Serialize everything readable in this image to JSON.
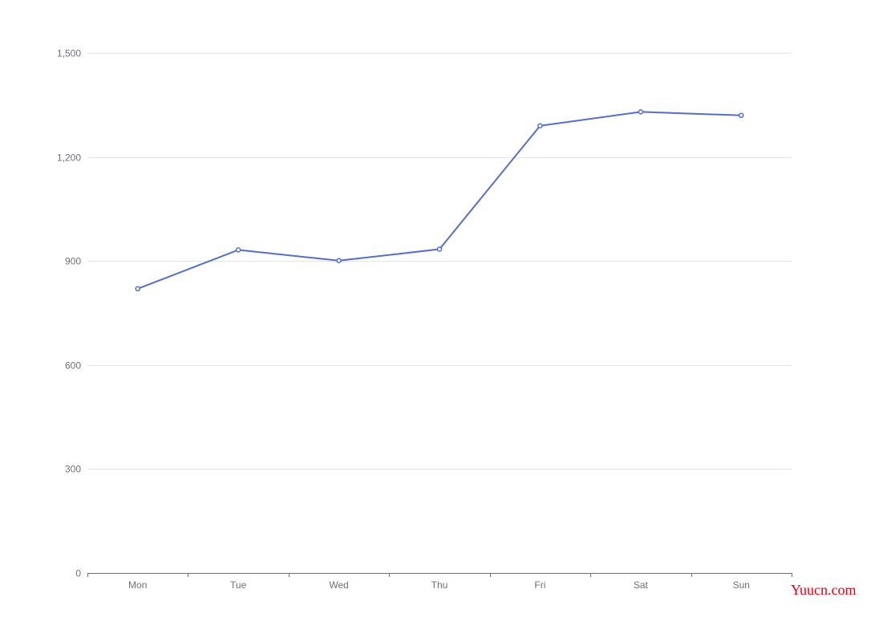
{
  "chart_data": {
    "type": "line",
    "categories": [
      "Mon",
      "Tue",
      "Wed",
      "Thu",
      "Fri",
      "Sat",
      "Sun"
    ],
    "values": [
      820,
      932,
      901,
      934,
      1290,
      1330,
      1320
    ],
    "ylim": [
      0,
      1500
    ],
    "yticks": [
      0,
      300,
      600,
      900,
      1200,
      1500
    ],
    "ytick_labels": [
      "0",
      "300",
      "600",
      "900",
      "1,200",
      "1,500"
    ],
    "grid": true,
    "title": "",
    "xlabel": "",
    "ylabel": ""
  },
  "colors": {
    "series": "#5470c6",
    "grid": "#e0e6f1",
    "axis": "#6e7079",
    "label": "#6e7079",
    "watermark": "#e60012"
  },
  "watermark": {
    "text": "Yuucn.com"
  }
}
